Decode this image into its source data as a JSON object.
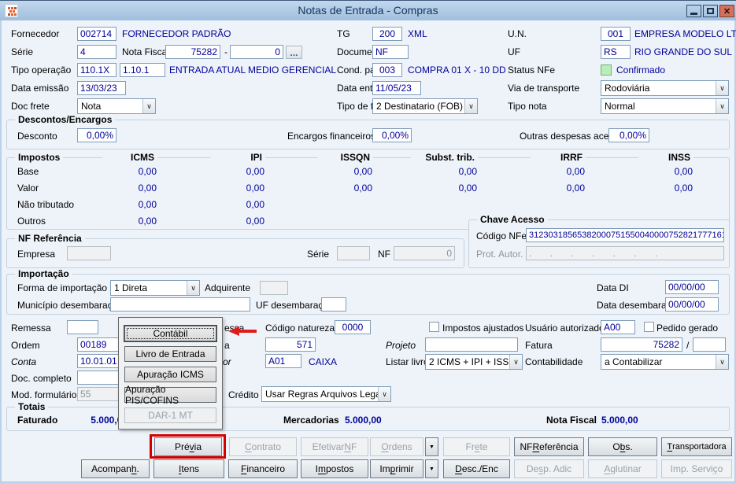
{
  "window": {
    "title": "Notas de Entrada - Compras"
  },
  "header": {
    "fornecedor": {
      "label": "Fornecedor",
      "code": "002714",
      "desc": "FORNECEDOR PADRÃO"
    },
    "tg": {
      "label": "TG",
      "code": "200",
      "desc": "XML"
    },
    "un": {
      "label": "U.N.",
      "code": "001",
      "desc": "EMPRESA MODELO LTDA"
    },
    "serie": {
      "label": "Série",
      "value": "4"
    },
    "nota_fiscal": {
      "label": "Nota Fiscal",
      "numero": "75282",
      "sep": "-",
      "sub": "0",
      "more": "..."
    },
    "documento": {
      "label": "Documento",
      "value": "NF"
    },
    "uf": {
      "label": "UF",
      "code": "RS",
      "desc": "RIO GRANDE DO SUL"
    },
    "tipo_operacao": {
      "label": "Tipo operação",
      "code1": "110.1X",
      "code2": "1.10.1",
      "desc": "ENTRADA ATUAL MEDIO GERENCIAL"
    },
    "cond_pag": {
      "label": "Cond. pag.",
      "code": "003",
      "desc": "COMPRA 01 X - 10 DD"
    },
    "status_nfe": {
      "label": "Status NFe",
      "value": "Confirmado"
    },
    "data_emissao": {
      "label": "Data emissão",
      "value": "13/03/23"
    },
    "data_entrada": {
      "label": "Data entrada",
      "value": "11/05/23"
    },
    "via_transporte": {
      "label": "Via de transporte",
      "value": "Rodoviária"
    },
    "doc_frete": {
      "label": "Doc frete",
      "value": "Nota"
    },
    "tipo_frete": {
      "label": "Tipo de frete",
      "value": "2 Destinatario (FOB)"
    },
    "tipo_nota": {
      "label": "Tipo nota",
      "value": "Normal"
    }
  },
  "descontos": {
    "title": "Descontos/Encargos",
    "desconto_label": "Desconto",
    "desconto": "0,00%",
    "encargos_label": "Encargos financeiros",
    "encargos": "0,00%",
    "outras_label": "Outras despesas acessórias",
    "outras": "0,00%"
  },
  "impostos": {
    "title": "Impostos",
    "columns": [
      "ICMS",
      "IPI",
      "ISSQN",
      "Subst. trib.",
      "IRRF",
      "INSS"
    ],
    "rows": [
      {
        "label": "Base",
        "values": [
          "0,00",
          "0,00",
          "0,00",
          "0,00",
          "0,00",
          "0,00"
        ]
      },
      {
        "label": "Valor",
        "values": [
          "0,00",
          "0,00",
          "0,00",
          "0,00",
          "0,00",
          "0,00"
        ]
      },
      {
        "label": "Não tributado",
        "values": [
          "0,00",
          "0,00"
        ]
      },
      {
        "label": "Outros",
        "values": [
          "0,00",
          "0,00"
        ]
      }
    ]
  },
  "chave_acesso": {
    "title": "Chave Acesso",
    "codigo_label": "Código NFe",
    "codigo": "312303185653820007515500400007528217771611",
    "prot_label": "Prot. Autor.",
    "prot_value": ".    .    .    .    .    .    ."
  },
  "nf_referencia": {
    "title": "NF Referência",
    "empresa_label": "Empresa",
    "serie_label": "Série",
    "nf_label": "NF",
    "nf_value": "0"
  },
  "importacao": {
    "title": "Importação",
    "forma_label": "Forma de importação",
    "forma": "1 Direta",
    "adquirente_label": "Adquirente",
    "municipio_label": "Município desembaraço",
    "uf_label": "UF desembaraço",
    "data_di_label": "Data DI",
    "data_di": "00/00/00",
    "data_desembaraco_label": "Data desembaraço",
    "data_desembaraco": "00/00/00"
  },
  "detalhes": {
    "remessa_label": "Remessa",
    "ordem_label": "Ordem",
    "ordem": "00189",
    "conta_label": "Conta",
    "conta": "10.01.01",
    "doc_completo_label": "Doc. completo",
    "mod_formulario_label": "Mod. formulário",
    "mod_formulario": "55",
    "fragmento_impressa": "essa",
    "codigo_natureza_label": "Código natureza",
    "codigo_natureza": "0000",
    "fragmento_praca": "a",
    "praca_valor": "571",
    "fragmento_portador": "or",
    "portador_code": "A01",
    "portador_desc": "CAIXA",
    "projeto_label": "Projeto",
    "listar_livros_label": "Listar livros",
    "listar_livros": "2 ICMS + IPI + ISS",
    "impostos_ajustados_label": "Impostos ajustados",
    "usuario_label": "Usuário autorizado",
    "usuario": "A00",
    "pedido_gerado_label": "Pedido gerado",
    "fatura_label": "Fatura",
    "fatura": "75282",
    "fatura_sep": "/",
    "contabilidade_label": "Contabilidade",
    "contabilidade": "a Contabilizar",
    "credito_label": "Crédito",
    "credito": "Usar Regras Arquivos Legais"
  },
  "popup": {
    "items": [
      {
        "label": "Contábil"
      },
      {
        "label": "Livro de Entrada"
      },
      {
        "label": "Apuração ICMS"
      },
      {
        "label": "Apuração PIS/COFINS"
      },
      {
        "label": "DAR-1 MT"
      }
    ]
  },
  "totais": {
    "title": "Totais",
    "faturado_label": "Faturado",
    "faturado": "5.000,00",
    "mercadorias_label": "Mercadorias",
    "mercadorias": "5.000,00",
    "nota_fiscal_label": "Nota Fiscal",
    "nota_fiscal": "5.000,00"
  },
  "buttons": {
    "row1": [
      {
        "html": "Pré<u>v</u>ia"
      },
      {
        "html": "<u>C</u>ontrato"
      },
      {
        "html": "Efetivar <u>N</u>F"
      },
      {
        "html": "<u>O</u>rdens"
      },
      {
        "html": "Fr<u>e</u>te"
      },
      {
        "html": "NF <u>R</u>eferência"
      },
      {
        "html": "O<u>b</u>s."
      },
      {
        "html": "<u>T</u>ransportadora"
      }
    ],
    "row2": [
      {
        "html": "Acompan<u>h</u>."
      },
      {
        "html": "<u>I</u>tens"
      },
      {
        "html": "<u>F</u>inanceiro"
      },
      {
        "html": "I<u>m</u>postos"
      },
      {
        "html": "Im<u>p</u>rimir"
      },
      {
        "html": "<u>D</u>esc./Enc"
      },
      {
        "html": "De<u>s</u>p. Adic"
      },
      {
        "html": "<u>A</u>glutinar"
      },
      {
        "html": "Imp. Servi<u>ç</u>o"
      }
    ]
  },
  "colors": {
    "accent_red": "#d40000",
    "status_green": "#b8efb8",
    "value_blue": "#000099"
  }
}
